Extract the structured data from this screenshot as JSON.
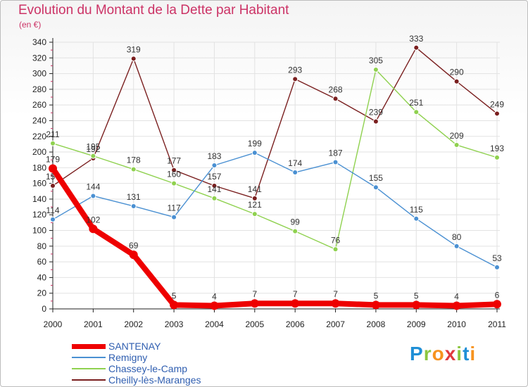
{
  "header": {
    "title": "Evolution du Montant de la Dette par Habitant",
    "subtitle": "(en €)"
  },
  "logo": {
    "letters": [
      "P",
      "r",
      "o",
      "x",
      "i",
      "t",
      "i"
    ],
    "colors": [
      "#1f8fd6",
      "#8cc63f",
      "#f7931e",
      "#e03a3e",
      "#8cc63f",
      "#1f8fd6",
      "#f7931e"
    ]
  },
  "chart_data": {
    "type": "line",
    "title": "Evolution du Montant de la Dette par Habitant",
    "ylabel": "(en €)",
    "xlabel": "",
    "x": [
      "2000",
      "2001",
      "2002",
      "2003",
      "2004",
      "2005",
      "2006",
      "2007",
      "2008",
      "2009",
      "2010",
      "2011"
    ],
    "ylim": [
      0,
      340
    ],
    "yticks": [
      0,
      20,
      40,
      60,
      80,
      100,
      120,
      140,
      160,
      180,
      200,
      220,
      240,
      260,
      280,
      300,
      320,
      340
    ],
    "grid": true,
    "legend_position": "bottom-left",
    "series": [
      {
        "name": "SANTENAY",
        "color": "#ee0000",
        "values": [
          179,
          102,
          69,
          5,
          4,
          7,
          7,
          7,
          5,
          5,
          4,
          6
        ]
      },
      {
        "name": "Remigny",
        "color": "#4a90d2",
        "values": [
          114,
          144,
          131,
          117,
          183,
          199,
          174,
          187,
          155,
          115,
          80,
          53
        ]
      },
      {
        "name": "Chassey-le-Camp",
        "color": "#8fd14f",
        "values": [
          211,
          195,
          178,
          160,
          141,
          121,
          99,
          76,
          305,
          251,
          209,
          193
        ]
      },
      {
        "name": "Cheilly-lès-Maranges",
        "color": "#7a1f1f",
        "values": [
          157,
          192,
          319,
          177,
          157,
          141,
          293,
          268,
          239,
          333,
          290,
          249
        ]
      }
    ]
  }
}
